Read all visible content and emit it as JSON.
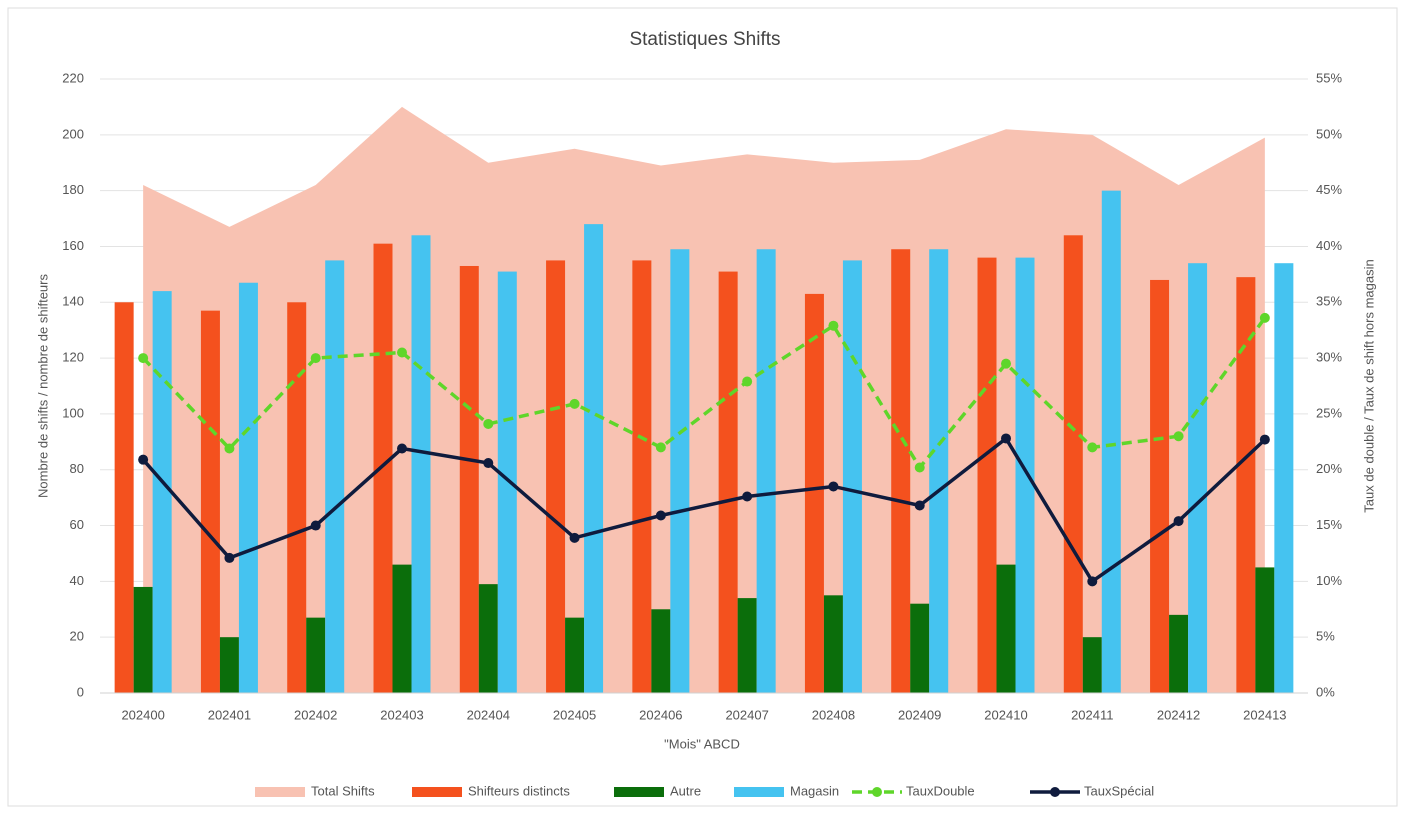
{
  "chart_data": {
    "type": "combo",
    "title": "Statistiques Shifts",
    "x_label": "\"Mois\" ABCD",
    "y_label": "Nombre de shifts / nombre de shifteurs",
    "y2_label": "Taux de double / Taux de shift hors magasin",
    "categories": [
      "202400",
      "202401",
      "202402",
      "202403",
      "202404",
      "202405",
      "202406",
      "202407",
      "202408",
      "202409",
      "202410",
      "202411",
      "202412",
      "202413"
    ],
    "ylim": [
      0,
      220
    ],
    "yticks": [
      0,
      20,
      40,
      60,
      80,
      100,
      120,
      140,
      160,
      180,
      200,
      220
    ],
    "y2lim": [
      0,
      55
    ],
    "y2ticks": [
      {
        "value": 0,
        "label": "0%"
      },
      {
        "value": 5,
        "label": "5%"
      },
      {
        "value": 10,
        "label": "10%"
      },
      {
        "value": 15,
        "label": "15%"
      },
      {
        "value": 20,
        "label": "20%"
      },
      {
        "value": 25,
        "label": "25%"
      },
      {
        "value": 30,
        "label": "30%"
      },
      {
        "value": 35,
        "label": "35%"
      },
      {
        "value": 40,
        "label": "40%"
      },
      {
        "value": 45,
        "label": "45%"
      },
      {
        "value": 50,
        "label": "50%"
      },
      {
        "value": 55,
        "label": "55%"
      }
    ],
    "grid": true,
    "legend": "bottom",
    "series": [
      {
        "name": "Total Shifts",
        "type": "area",
        "color": "#f8c2b2",
        "values": [
          182,
          167,
          182,
          210,
          190,
          195,
          189,
          193,
          190,
          191,
          202,
          200,
          182,
          199
        ]
      },
      {
        "name": "Shifteurs distincts",
        "type": "bar",
        "color": "#f4511e",
        "values": [
          140,
          137,
          140,
          161,
          153,
          155,
          155,
          151,
          143,
          159,
          156,
          164,
          148,
          149
        ]
      },
      {
        "name": "Autre",
        "type": "bar",
        "color": "#0b6e0b",
        "values": [
          38,
          20,
          27,
          46,
          39,
          27,
          30,
          34,
          35,
          32,
          46,
          20,
          28,
          45
        ]
      },
      {
        "name": "Magasin",
        "type": "bar",
        "color": "#45c3f0",
        "values": [
          144,
          147,
          155,
          164,
          151,
          168,
          159,
          159,
          155,
          159,
          156,
          180,
          154,
          154
        ]
      },
      {
        "name": "TauxDouble",
        "type": "line",
        "dashed": true,
        "axis": "y2",
        "color": "#5fd62a",
        "values": [
          30.0,
          21.9,
          30.0,
          30.5,
          24.1,
          25.9,
          22.0,
          27.9,
          32.9,
          20.2,
          29.5,
          22.0,
          23.0,
          33.6
        ]
      },
      {
        "name": "TauxSpécial",
        "type": "line",
        "axis": "y2",
        "color": "#0f1b3d",
        "values": [
          20.9,
          12.1,
          15.0,
          21.9,
          20.6,
          13.9,
          15.9,
          17.6,
          18.5,
          16.8,
          22.8,
          10.0,
          15.4,
          22.7
        ]
      }
    ]
  }
}
